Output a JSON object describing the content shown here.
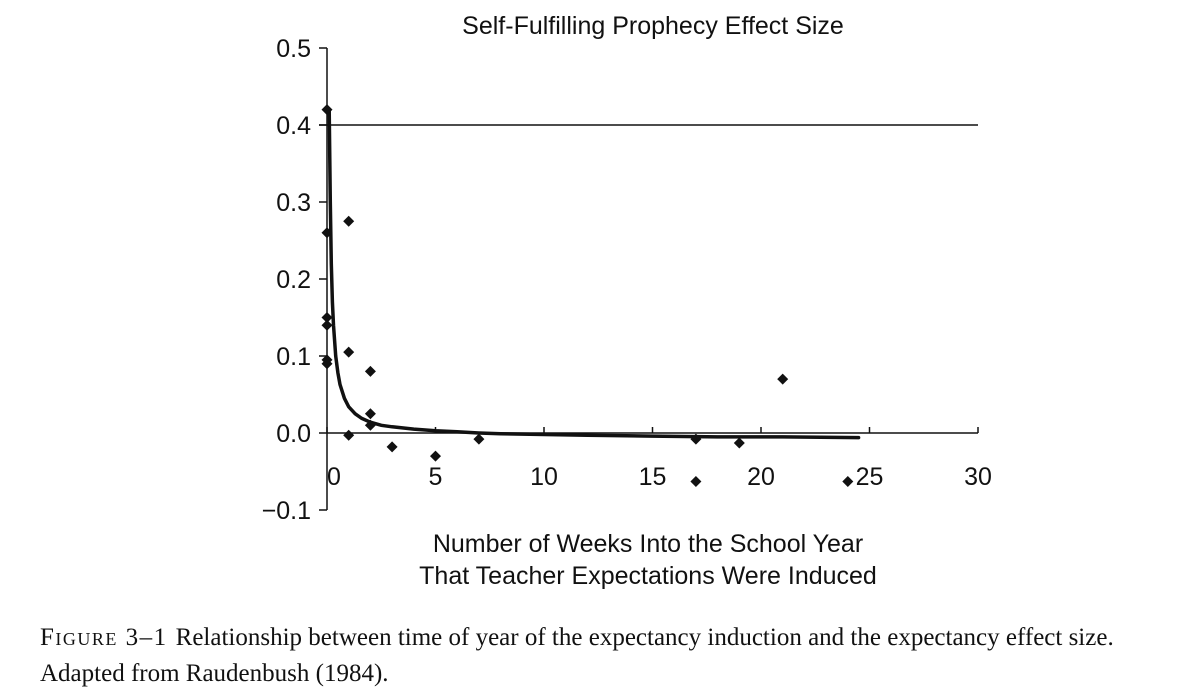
{
  "chart_data": {
    "type": "scatter",
    "title": "Self-Fulfilling Prophecy Effect Size",
    "xlabel_lines": [
      "Number of Weeks Into the School Year",
      "That Teacher Expectations Were Induced"
    ],
    "ylabel": "",
    "xlim": [
      0,
      30
    ],
    "ylim": [
      -0.1,
      0.5
    ],
    "x_ticks": [
      0,
      5,
      10,
      15,
      20,
      25,
      30
    ],
    "x_tick_labels": [
      "0",
      "5",
      "10",
      "15",
      "20",
      "25",
      "30"
    ],
    "y_ticks": [
      0.5,
      0.4,
      0.3,
      0.2,
      0.1,
      0.0,
      -0.1
    ],
    "y_tick_labels": [
      "0.5",
      "0.4",
      "0.3",
      "0.2",
      "0.1",
      "0.0",
      "−0.1"
    ],
    "reference_line_y": 0.4,
    "points": [
      {
        "x": 0,
        "y": 0.42
      },
      {
        "x": 0,
        "y": 0.26
      },
      {
        "x": 0,
        "y": 0.15
      },
      {
        "x": 0,
        "y": 0.14
      },
      {
        "x": 0,
        "y": 0.095
      },
      {
        "x": 0,
        "y": 0.09
      },
      {
        "x": 1,
        "y": 0.275
      },
      {
        "x": 1,
        "y": 0.105
      },
      {
        "x": 1,
        "y": -0.003
      },
      {
        "x": 2,
        "y": 0.08
      },
      {
        "x": 2,
        "y": 0.025
      },
      {
        "x": 2,
        "y": 0.01
      },
      {
        "x": 3,
        "y": -0.018
      },
      {
        "x": 5,
        "y": -0.03
      },
      {
        "x": 7,
        "y": -0.008
      },
      {
        "x": 17,
        "y": -0.008
      },
      {
        "x": 17,
        "y": -0.063
      },
      {
        "x": 19,
        "y": -0.013
      },
      {
        "x": 21,
        "y": 0.07
      },
      {
        "x": 24,
        "y": -0.063
      }
    ],
    "trend": {
      "type": "fitted-curve",
      "x": [
        0.1,
        0.15,
        0.2,
        0.25,
        0.3,
        0.4,
        0.5,
        0.6,
        0.8,
        1.0,
        1.3,
        1.6,
        2.0,
        2.5,
        3,
        4,
        5,
        6,
        7,
        8,
        10,
        12,
        15,
        18,
        21,
        24.5
      ],
      "y": [
        0.42,
        0.3,
        0.22,
        0.17,
        0.14,
        0.1,
        0.078,
        0.063,
        0.045,
        0.034,
        0.025,
        0.019,
        0.014,
        0.01,
        0.008,
        0.005,
        0.003,
        0.0015,
        0.0,
        -0.001,
        -0.002,
        -0.003,
        -0.004,
        -0.005,
        -0.005,
        -0.006
      ]
    }
  },
  "caption": {
    "label": "Figure 3–1",
    "text": "Relationship between time of year of the expectancy induction and the expectancy effect size. Adapted from Raudenbush (1984)."
  }
}
